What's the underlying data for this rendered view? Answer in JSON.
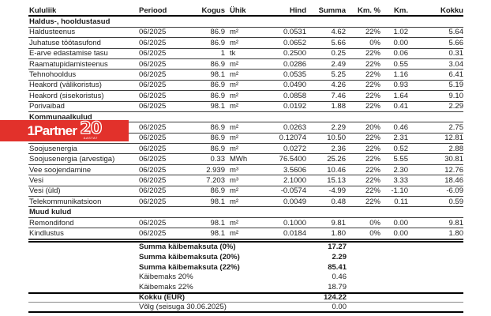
{
  "logo": {
    "brand": "1Partner",
    "number": "20",
    "sub": "AASTAT",
    "color": "#e2312b"
  },
  "table": {
    "columns": [
      "Kululiik",
      "Periood",
      "Kogus",
      "Ühik",
      "Hind",
      "Summa",
      "Km. %",
      "Km.",
      "Kokku"
    ],
    "rows": [
      {
        "type": "section",
        "label": "Haldus-, hooldustasud"
      },
      {
        "type": "data",
        "cells": [
          "Haldusteenus",
          "06/2025",
          "86.9",
          "m²",
          "0.0531",
          "4.62",
          "22%",
          "1.02",
          "5.64"
        ]
      },
      {
        "type": "data",
        "cells": [
          "Juhatuse töötasufond",
          "06/2025",
          "86.9",
          "m²",
          "0.0652",
          "5.66",
          "0%",
          "0.00",
          "5.66"
        ]
      },
      {
        "type": "data",
        "cells": [
          "E-arve edastamise tasu",
          "06/2025",
          "1",
          "tk",
          "0.2500",
          "0.25",
          "22%",
          "0.06",
          "0.31"
        ]
      },
      {
        "type": "data",
        "cells": [
          "Raamatupidamisteenus",
          "06/2025",
          "86.9",
          "m²",
          "0.0286",
          "2.49",
          "22%",
          "0.55",
          "3.04"
        ]
      },
      {
        "type": "data",
        "cells": [
          "Tehnohooldus",
          "06/2025",
          "98.1",
          "m²",
          "0.0535",
          "5.25",
          "22%",
          "1.16",
          "6.41"
        ]
      },
      {
        "type": "data",
        "cells": [
          "Heakord (välikoristus)",
          "06/2025",
          "86.9",
          "m²",
          "0.0490",
          "4.26",
          "22%",
          "0.93",
          "5.19"
        ]
      },
      {
        "type": "data",
        "cells": [
          "Heakord (sisekoristus)",
          "06/2025",
          "86.9",
          "m²",
          "0.0858",
          "7.46",
          "22%",
          "1.64",
          "9.10"
        ]
      },
      {
        "type": "data",
        "cells": [
          "Porivaibad",
          "06/2025",
          "98.1",
          "m²",
          "0.0192",
          "1.88",
          "22%",
          "0.41",
          "2.29"
        ]
      },
      {
        "type": "section",
        "label": "Kommunaalkulud"
      },
      {
        "type": "data",
        "cells": [
          "",
          "06/2025",
          "86.9",
          "m²",
          "0.0263",
          "2.29",
          "20%",
          "0.46",
          "2.75"
        ]
      },
      {
        "type": "data",
        "cells": [
          "",
          "06/2025",
          "86.9",
          "m²",
          "0.12074",
          "10.50",
          "22%",
          "2.31",
          "12.81"
        ]
      },
      {
        "type": "data",
        "cells": [
          "Soojusenergia",
          "06/2025",
          "86.9",
          "m²",
          "0.0272",
          "2.36",
          "22%",
          "0.52",
          "2.88"
        ]
      },
      {
        "type": "data",
        "cells": [
          "Soojusenergia (arvestiga)",
          "06/2025",
          "0.33",
          "MWh",
          "76.5400",
          "25.26",
          "22%",
          "5.55",
          "30.81"
        ]
      },
      {
        "type": "data",
        "cells": [
          "Vee soojendamine",
          "06/2025",
          "2.939",
          "m³",
          "3.5606",
          "10.46",
          "22%",
          "2.30",
          "12.76"
        ]
      },
      {
        "type": "data",
        "cells": [
          "Vesi",
          "06/2025",
          "7.203",
          "m³",
          "2.1000",
          "15.13",
          "22%",
          "3.33",
          "18.46"
        ]
      },
      {
        "type": "data",
        "cells": [
          "Vesi (üld)",
          "06/2025",
          "86.9",
          "m²",
          "-0.0574",
          "-4.99",
          "22%",
          "-1.10",
          "-6.09"
        ]
      },
      {
        "type": "data",
        "cells": [
          "Telekommunikatsioon",
          "06/2025",
          "98.1",
          "m²",
          "0.0049",
          "0.48",
          "22%",
          "0.11",
          "0.59"
        ]
      },
      {
        "type": "section",
        "label": "Muud kulud"
      },
      {
        "type": "data",
        "cells": [
          "Remondifond",
          "06/2025",
          "98.1",
          "m²",
          "0.1000",
          "9.81",
          "0%",
          "0.00",
          "9.81"
        ]
      },
      {
        "type": "data",
        "cells": [
          "Kindlustus",
          "06/2025",
          "98.1",
          "m²",
          "0.0184",
          "1.80",
          "0%",
          "0.00",
          "1.80"
        ]
      }
    ],
    "summary": [
      {
        "label": "Summa käibemaksuta (0%)",
        "value": "17.27",
        "bold": true
      },
      {
        "label": "Summa käibemaksuta (20%)",
        "value": "2.29",
        "bold": true
      },
      {
        "label": "Summa käibemaksuta (22%)",
        "value": "85.41",
        "bold": true
      },
      {
        "label": "Käibemaks 20%",
        "value": "0.46",
        "bold": false
      },
      {
        "label": "Käibemaks 22%",
        "value": "18.79",
        "bold": false
      }
    ],
    "totals": [
      {
        "label": "Kokku (EUR)",
        "value": "124.22",
        "bold": true
      },
      {
        "label": "Võlg (seisuga 30.06.2025)",
        "value": "0.00",
        "bold": false
      }
    ]
  }
}
